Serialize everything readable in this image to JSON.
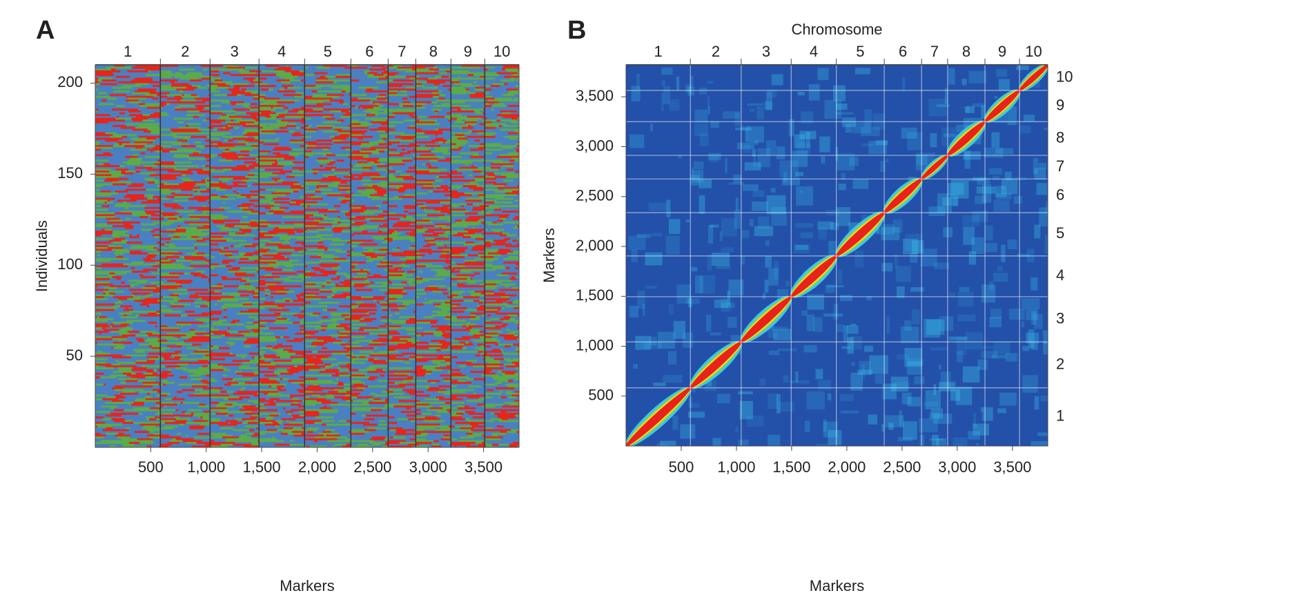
{
  "chart_data": [
    {
      "type": "genotype",
      "panel": "A",
      "xlabel": "Markers",
      "ylabel": "Individuals",
      "xlim": [
        0,
        3820
      ],
      "ylim": [
        0,
        210
      ],
      "xticks": [
        500,
        {
          "value": 1000,
          "label": "1,000"
        },
        {
          "value": 1500,
          "label": "1,500"
        },
        {
          "value": 2000,
          "label": "2,000"
        },
        {
          "value": 2500,
          "label": "2,500"
        },
        {
          "value": 3000,
          "label": "3,000"
        },
        {
          "value": 3500,
          "label": "3,500"
        }
      ],
      "yticks": [
        50,
        100,
        150,
        200
      ],
      "chromosomes": [
        "1",
        "2",
        "3",
        "4",
        "5",
        "6",
        "7",
        "8",
        "9",
        "10"
      ],
      "chromosome_boundaries": [
        587,
        1035,
        1476,
        1887,
        2304,
        2640,
        2889,
        3206,
        3511
      ],
      "colors": [
        "#4a80c2",
        "#5bab48",
        "#e5261c"
      ]
    },
    {
      "type": "ld_heatmap",
      "panel": "B",
      "title": "Chromosome",
      "xlabel": "Markers",
      "ylabel": "Markers",
      "xlim": [
        0,
        3820
      ],
      "ylim": [
        0,
        3820
      ],
      "xticks": [
        500,
        {
          "value": 1000,
          "label": "1,000"
        },
        {
          "value": 1500,
          "label": "1,500"
        },
        {
          "value": 2000,
          "label": "2,000"
        },
        {
          "value": 2500,
          "label": "2,500"
        },
        {
          "value": 3000,
          "label": "3,000"
        },
        {
          "value": 3500,
          "label": "3,500"
        }
      ],
      "yticks": [
        500,
        {
          "value": 1000,
          "label": "1,000"
        },
        {
          "value": 1500,
          "label": "1,500"
        },
        {
          "value": 2000,
          "label": "2,000"
        },
        {
          "value": 2500,
          "label": "2,500"
        },
        {
          "value": 3000,
          "label": "3,000"
        },
        {
          "value": 3500,
          "label": "3,500"
        }
      ],
      "chromosomes": [
        "1",
        "2",
        "3",
        "4",
        "5",
        "6",
        "7",
        "8",
        "9",
        "10"
      ],
      "chromosome_boundaries": [
        583,
        1043,
        1496,
        1905,
        2339,
        2677,
        2913,
        3251,
        3564
      ],
      "colors": [
        "#2351a9",
        "#3cc6ef",
        "#7fd35a",
        "#f4e021",
        "#e8231b"
      ]
    }
  ]
}
